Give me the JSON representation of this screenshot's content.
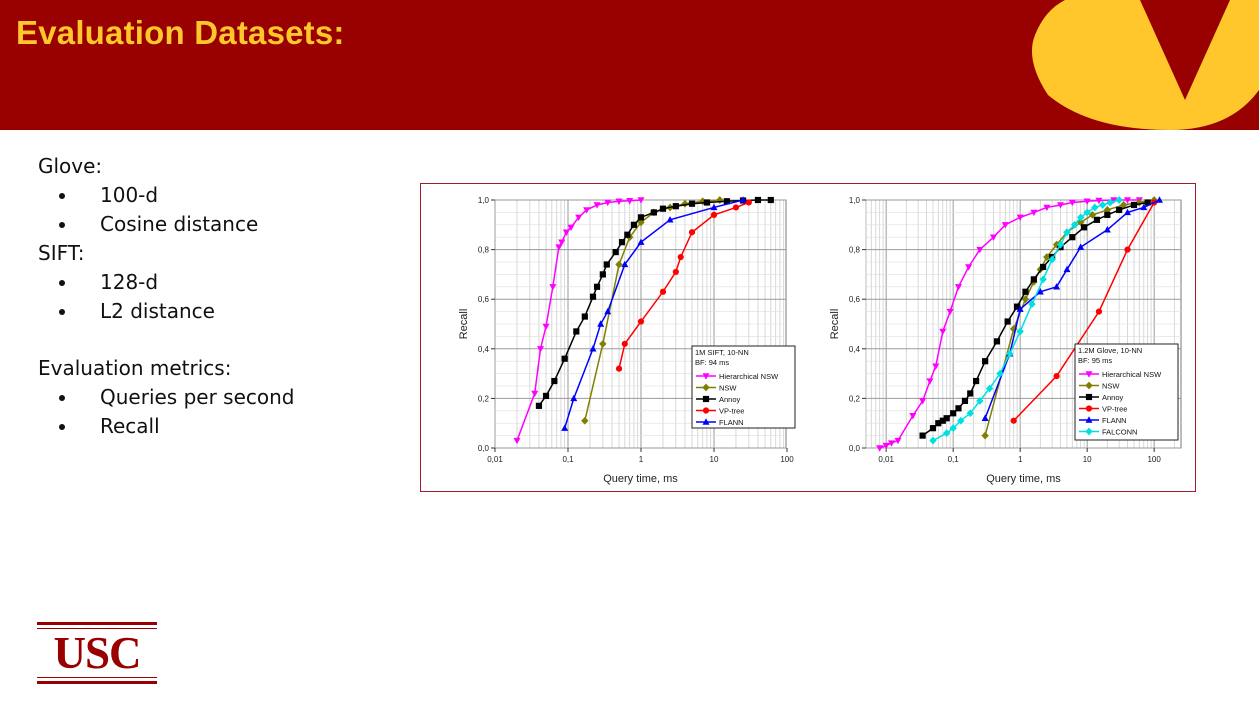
{
  "slide": {
    "title": "Evaluation Datasets:",
    "colors": {
      "header": "#990000",
      "title_text": "#FFC72C",
      "logo_gold": "#FFC72C",
      "frame": "#a31c2c"
    }
  },
  "bullets": [
    {
      "title": "Glove:",
      "items": [
        "100-d",
        "Cosine distance"
      ]
    },
    {
      "title": "SIFT:",
      "items": [
        "128-d",
        "L2 distance"
      ]
    },
    {
      "title": "Evaluation metrics:",
      "items": [
        "Queries per second",
        "Recall"
      ]
    }
  ],
  "logo": {
    "text": "USC"
  },
  "chart_data": [
    {
      "type": "line",
      "x_scale": "log",
      "xlabel": "Query time, ms",
      "ylabel": "Recall",
      "xlim": [
        0.01,
        100
      ],
      "ylim": [
        0.0,
        1.0
      ],
      "x_ticks": [
        "0,01",
        "0,1",
        "1",
        "10",
        "100"
      ],
      "y_ticks": [
        "0,0",
        "0,2",
        "0,4",
        "0,6",
        "0,8",
        "1,0"
      ],
      "grid": true,
      "legend_position": "bottom-right",
      "legend_title": [
        "1M SIFT, 10-NN",
        "BF: 94 ms"
      ],
      "series": [
        {
          "name": "Hierarchical NSW",
          "color": "#ff00ff",
          "marker": "triangle-down",
          "x": [
            0.02,
            0.035,
            0.042,
            0.05,
            0.062,
            0.075,
            0.082,
            0.095,
            0.11,
            0.14,
            0.18,
            0.25,
            0.35,
            0.5,
            0.7,
            1.0
          ],
          "y": [
            0.03,
            0.22,
            0.4,
            0.49,
            0.65,
            0.81,
            0.83,
            0.87,
            0.89,
            0.93,
            0.96,
            0.98,
            0.99,
            0.995,
            0.997,
            1.0
          ]
        },
        {
          "name": "NSW",
          "color": "#808000",
          "marker": "diamond",
          "x": [
            0.17,
            0.3,
            0.5,
            0.7,
            1.0,
            1.5,
            2.5,
            4,
            7,
            12
          ],
          "y": [
            0.11,
            0.42,
            0.74,
            0.85,
            0.91,
            0.95,
            0.97,
            0.985,
            0.995,
            1.0
          ]
        },
        {
          "name": "Annoy",
          "color": "#000000",
          "marker": "square",
          "x": [
            0.04,
            0.05,
            0.065,
            0.09,
            0.13,
            0.17,
            0.22,
            0.25,
            0.3,
            0.34,
            0.45,
            0.55,
            0.65,
            0.8,
            1.0,
            1.5,
            2.0,
            3.0,
            5,
            8,
            15,
            25,
            40,
            60
          ],
          "y": [
            0.17,
            0.21,
            0.27,
            0.36,
            0.47,
            0.53,
            0.61,
            0.65,
            0.7,
            0.74,
            0.79,
            0.83,
            0.86,
            0.9,
            0.93,
            0.95,
            0.965,
            0.975,
            0.985,
            0.99,
            0.995,
            0.998,
            1.0,
            1.0
          ]
        },
        {
          "name": "VP-tree",
          "color": "#ff0000",
          "marker": "circle",
          "x": [
            0.5,
            0.6,
            1.0,
            2.0,
            3.0,
            3.5,
            5,
            10,
            20,
            30
          ],
          "y": [
            0.32,
            0.42,
            0.51,
            0.63,
            0.71,
            0.77,
            0.87,
            0.94,
            0.97,
            0.99
          ]
        },
        {
          "name": "FLANN",
          "color": "#0000ff",
          "marker": "triangle-up",
          "x": [
            0.09,
            0.12,
            0.22,
            0.28,
            0.35,
            0.6,
            1.0,
            2.5,
            10,
            25
          ],
          "y": [
            0.08,
            0.2,
            0.4,
            0.5,
            0.55,
            0.74,
            0.83,
            0.92,
            0.97,
            1.0
          ]
        }
      ]
    },
    {
      "type": "line",
      "x_scale": "log",
      "xlabel": "Query time, ms",
      "ylabel": "Recall",
      "xlim": [
        0.005,
        200
      ],
      "ylim": [
        0.0,
        1.0
      ],
      "x_ticks": [
        "0,01",
        "0,1",
        "1",
        "10",
        "100"
      ],
      "y_ticks": [
        "0,0",
        "0,2",
        "0,4",
        "0,6",
        "0,8",
        "1,0"
      ],
      "grid": true,
      "legend_position": "bottom-right",
      "legend_title": [
        "1.2M Glove, 10-NN",
        "BF: 95 ms"
      ],
      "series": [
        {
          "name": "Hierarchical NSW",
          "color": "#ff00ff",
          "marker": "triangle-down",
          "x": [
            0.008,
            0.01,
            0.012,
            0.015,
            0.025,
            0.035,
            0.045,
            0.055,
            0.07,
            0.09,
            0.12,
            0.17,
            0.25,
            0.4,
            0.6,
            1.0,
            1.6,
            2.5,
            4,
            6,
            10,
            15,
            25,
            40,
            60
          ],
          "y": [
            0.0,
            0.01,
            0.02,
            0.03,
            0.13,
            0.19,
            0.27,
            0.33,
            0.47,
            0.55,
            0.65,
            0.73,
            0.8,
            0.85,
            0.9,
            0.93,
            0.95,
            0.97,
            0.98,
            0.99,
            0.995,
            0.998,
            1.0,
            1.0,
            1.0
          ]
        },
        {
          "name": "NSW",
          "color": "#808000",
          "marker": "diamond",
          "x": [
            0.3,
            0.8,
            1.2,
            1.6,
            2.0,
            2.5,
            3.5,
            5,
            8,
            12,
            20,
            35,
            60,
            100
          ],
          "y": [
            0.05,
            0.48,
            0.6,
            0.67,
            0.72,
            0.77,
            0.82,
            0.87,
            0.91,
            0.94,
            0.96,
            0.98,
            0.99,
            1.0
          ]
        },
        {
          "name": "Annoy",
          "color": "#000000",
          "marker": "square",
          "x": [
            0.035,
            0.05,
            0.06,
            0.07,
            0.08,
            0.1,
            0.12,
            0.15,
            0.18,
            0.22,
            0.3,
            0.45,
            0.65,
            0.9,
            1.2,
            1.6,
            2.2,
            3.0,
            4,
            6,
            9,
            14,
            20,
            30,
            50,
            80
          ],
          "y": [
            0.05,
            0.08,
            0.1,
            0.11,
            0.12,
            0.14,
            0.16,
            0.19,
            0.22,
            0.27,
            0.35,
            0.43,
            0.51,
            0.57,
            0.63,
            0.68,
            0.73,
            0.77,
            0.81,
            0.85,
            0.89,
            0.92,
            0.94,
            0.96,
            0.98,
            0.99
          ]
        },
        {
          "name": "VP-tree",
          "color": "#ff0000",
          "marker": "circle",
          "x": [
            0.8,
            3.5,
            15,
            40,
            100
          ],
          "y": [
            0.11,
            0.29,
            0.55,
            0.8,
            0.99
          ]
        },
        {
          "name": "FLANN",
          "color": "#0000ff",
          "marker": "triangle-up",
          "x": [
            0.3,
            0.7,
            1.0,
            2.0,
            3.5,
            5,
            8,
            20,
            40,
            70,
            120
          ],
          "y": [
            0.12,
            0.38,
            0.56,
            0.63,
            0.65,
            0.72,
            0.81,
            0.88,
            0.95,
            0.97,
            1.0
          ]
        },
        {
          "name": "FALCONN",
          "color": "#00e0e0",
          "marker": "diamond",
          "x": [
            0.05,
            0.08,
            0.1,
            0.13,
            0.18,
            0.25,
            0.35,
            0.5,
            0.7,
            1.0,
            1.5,
            2.2,
            3.0,
            4.0,
            5.0,
            6.5,
            8,
            10,
            13,
            17,
            22,
            30
          ],
          "y": [
            0.03,
            0.06,
            0.08,
            0.11,
            0.14,
            0.19,
            0.24,
            0.3,
            0.38,
            0.47,
            0.58,
            0.68,
            0.76,
            0.82,
            0.87,
            0.9,
            0.93,
            0.95,
            0.97,
            0.98,
            0.99,
            1.0
          ]
        }
      ]
    }
  ]
}
